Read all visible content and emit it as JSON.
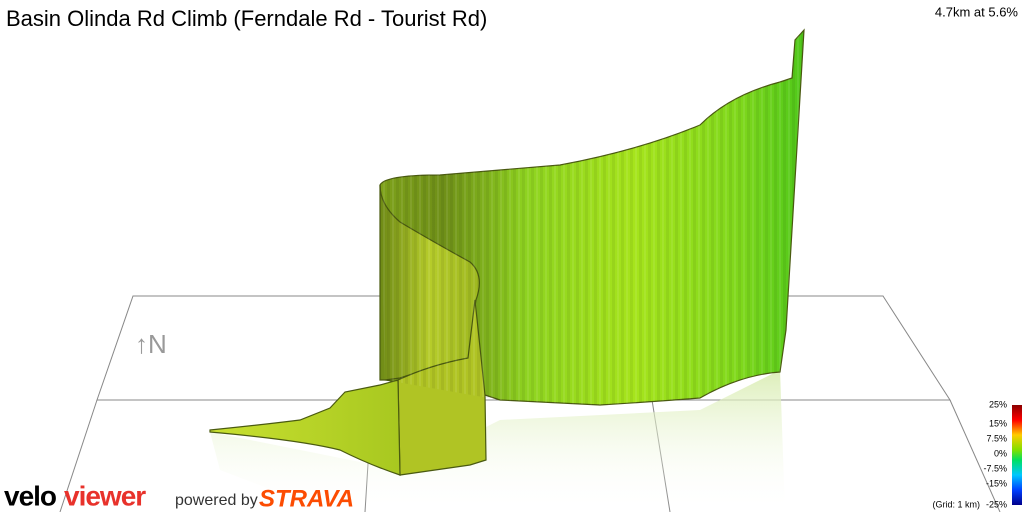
{
  "header": {
    "title": "Basin Olinda Rd Climb (Ferndale Rd - Tourist Rd)",
    "stats": "4.7km at 5.6%"
  },
  "compass": "↑N",
  "legend": {
    "labels": [
      "25%",
      "15%",
      "7.5%",
      "0%",
      "-7.5%",
      "-15%",
      "-25%"
    ],
    "grid_note": "(Grid: 1 km)"
  },
  "footer": {
    "logo_velo": "velo",
    "logo_viewer": "viewer",
    "powered_by": "powered by",
    "strava": "STRAVA"
  }
}
